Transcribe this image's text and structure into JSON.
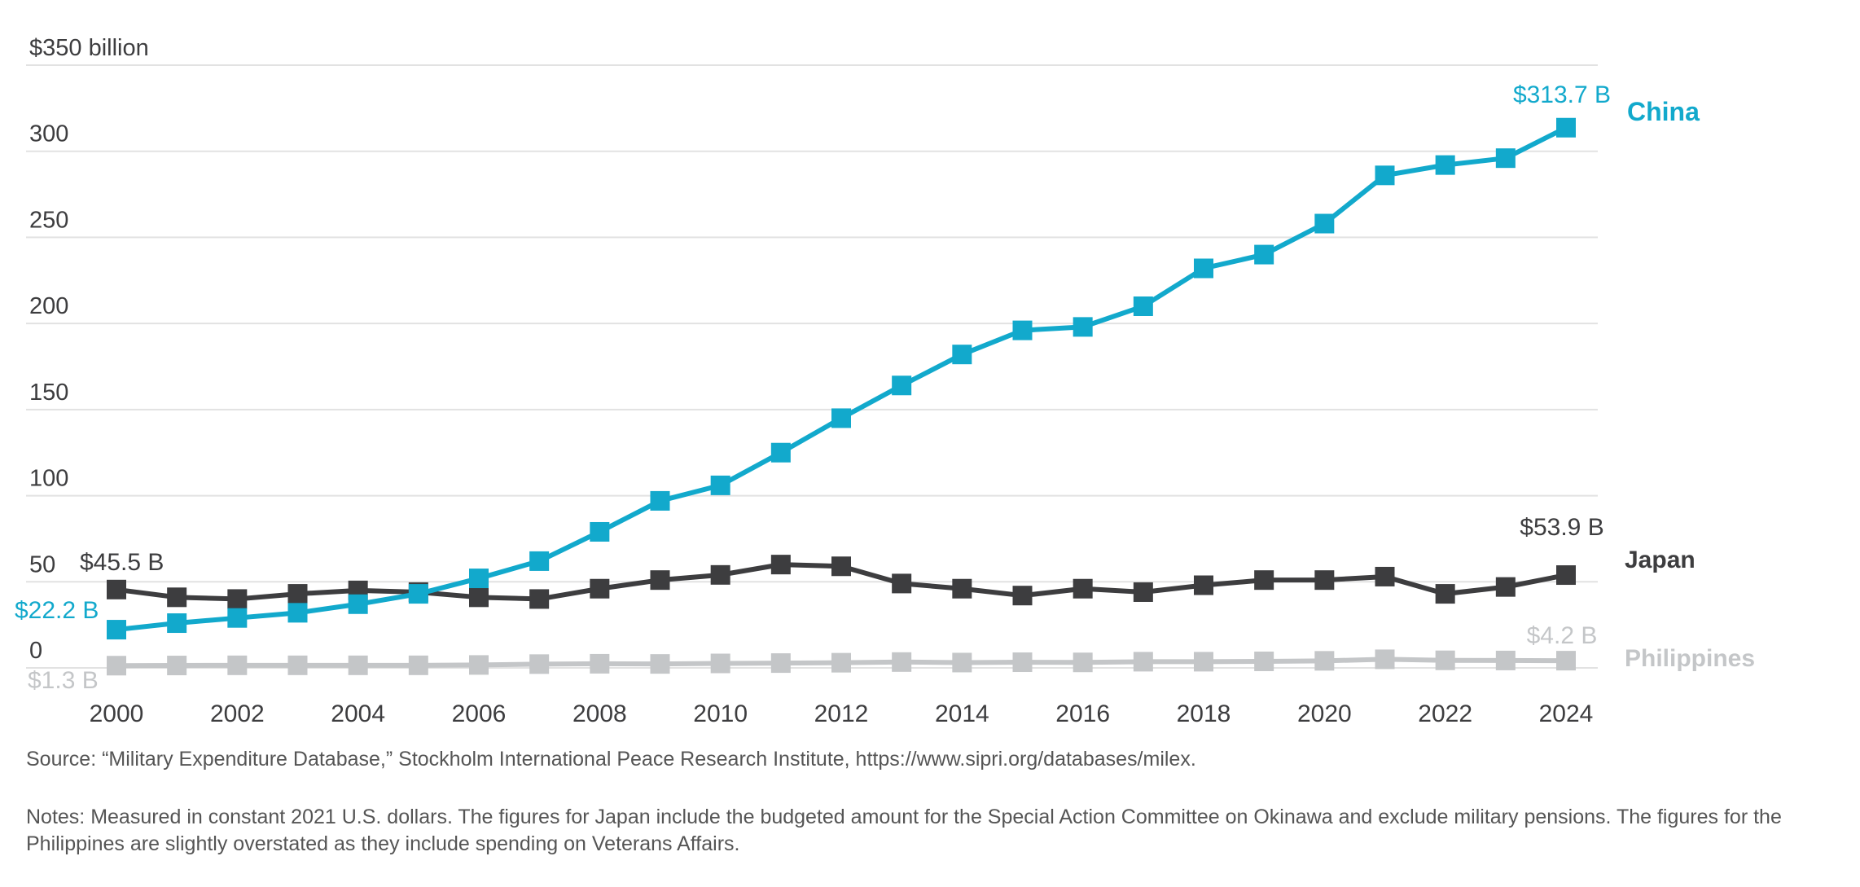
{
  "chart_data": {
    "type": "line",
    "title": "",
    "xlabel": "",
    "ylabel": "",
    "y_unit_label": "$350 billion",
    "ylim": [
      0,
      350
    ],
    "yticks": [
      0,
      50,
      100,
      150,
      200,
      250,
      300,
      350
    ],
    "ytick_labels": [
      "0",
      "50",
      "100",
      "150",
      "200",
      "250",
      "300",
      "$350 billion"
    ],
    "x": [
      2000,
      2001,
      2002,
      2003,
      2004,
      2005,
      2006,
      2007,
      2008,
      2009,
      2010,
      2011,
      2012,
      2013,
      2014,
      2015,
      2016,
      2017,
      2018,
      2019,
      2020,
      2021,
      2022,
      2023,
      2024
    ],
    "xticks": [
      "2000",
      "2002",
      "2004",
      "2006",
      "2008",
      "2010",
      "2012",
      "2014",
      "2016",
      "2018",
      "2020",
      "2022",
      "2024"
    ],
    "grid": true,
    "series": [
      {
        "name": "China",
        "color": "#12a9cc",
        "values": [
          22.2,
          26,
          29,
          32,
          37,
          43,
          52,
          62,
          79,
          97,
          106,
          125,
          145,
          164,
          182,
          196,
          198,
          210,
          232,
          240,
          258,
          286,
          292,
          296,
          313.7
        ],
        "start_label": "$22.2 B",
        "end_label": "$313.7 B"
      },
      {
        "name": "Japan",
        "color": "#3d3d3f",
        "values": [
          45.5,
          41,
          40,
          43,
          45,
          44,
          41,
          40,
          46,
          51,
          54,
          60,
          59,
          49,
          46,
          42,
          46,
          44,
          48,
          51,
          51,
          53,
          43,
          47,
          53.9
        ],
        "start_label": "$45.5 B",
        "end_label": "$53.9 B"
      },
      {
        "name": "Philippines",
        "color": "#c4c6c8",
        "values": [
          1.3,
          1.4,
          1.5,
          1.5,
          1.5,
          1.5,
          1.7,
          2.2,
          2.4,
          2.3,
          2.6,
          2.8,
          3.0,
          3.4,
          3.1,
          3.3,
          3.2,
          3.6,
          3.6,
          3.8,
          4.1,
          5.0,
          4.4,
          4.3,
          4.2
        ],
        "start_label": "$1.3 B",
        "end_label": "$4.2 B"
      }
    ]
  },
  "source": "Source: “Military Expenditure Database,” Stockholm International Peace Research Institute, https://www.sipri.org/databases/milex.",
  "notes": "Notes: Measured in constant 2021 U.S. dollars. The figures for Japan include the budgeted amount for the Special Action Committee on Okinawa and exclude military pensions. The figures for the Philippines are slightly overstated as they include spending on Veterans Affairs."
}
